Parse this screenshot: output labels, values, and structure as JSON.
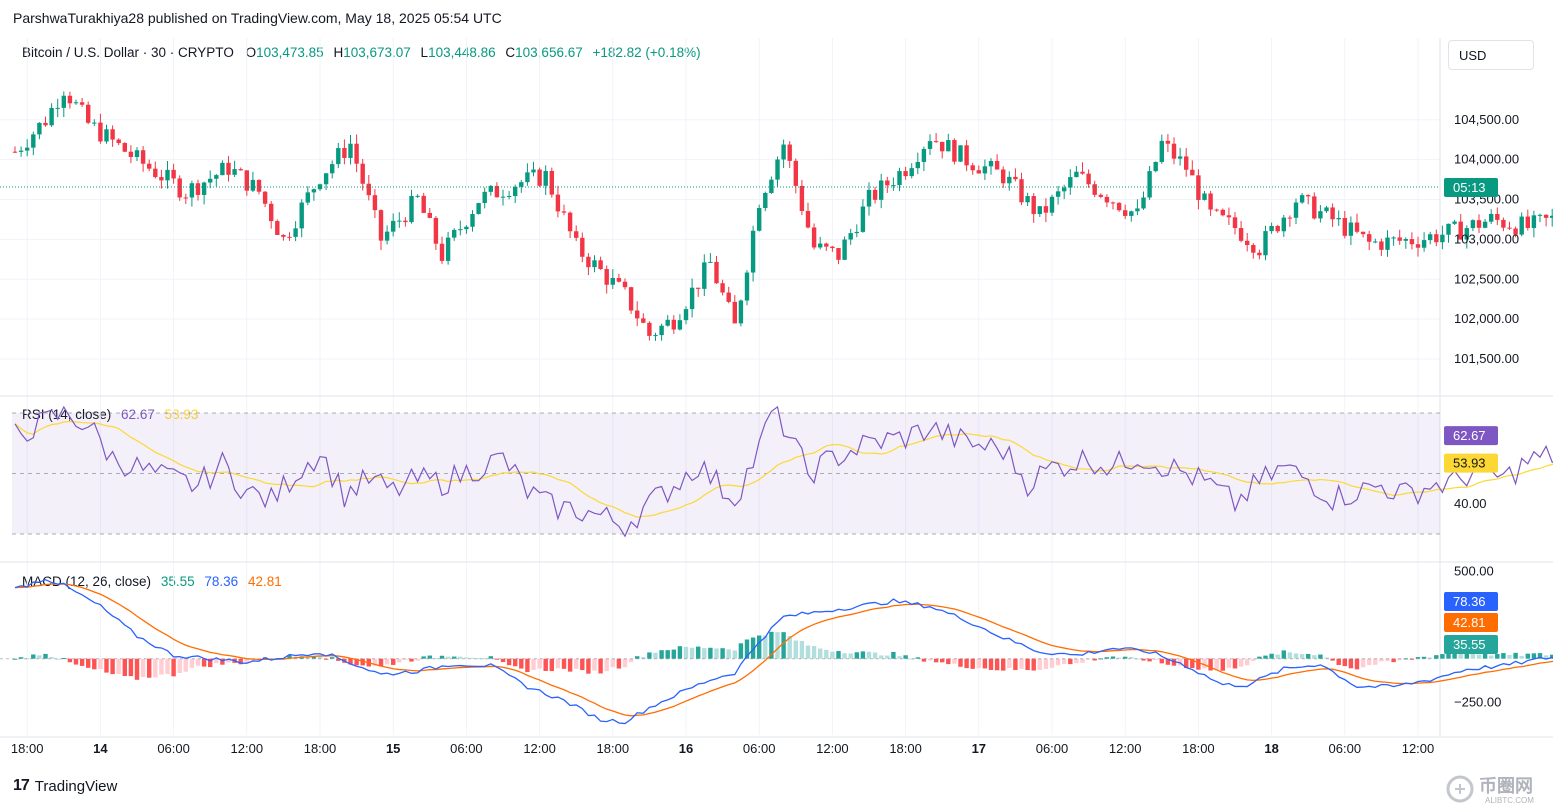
{
  "publish_line": "ParshwaTurakhiya28 published on TradingView.com, May 18, 2025 05:54 UTC",
  "legend": {
    "symbol": "Bitcoin / U.S. Dollar · 30 · CRYPTO",
    "o_label": "O",
    "open": "103,473.85",
    "h_label": "H",
    "high": "103,673.07",
    "l_label": "L",
    "low": "103,448.86",
    "c_label": "C",
    "close": "103,656.67",
    "change": "+182.82 (+0.18%)"
  },
  "currency_button": "USD",
  "countdown": "05:13",
  "rsi": {
    "label": "RSI (14, close)",
    "value": "62.67",
    "ma_value": "53.93",
    "axis_label": "40.00"
  },
  "macd": {
    "label": "MACD (12, 26, close)",
    "histogram_value": "35.55",
    "macd_value": "78.36",
    "signal_value": "42.81",
    "axis_top": "500.00",
    "axis_bottom": "−250.00"
  },
  "footer": {
    "logo_glyph": "17",
    "brand": "TradingView"
  },
  "watermark": {
    "text": "币圈网",
    "url": "ALIBTC.COM"
  },
  "colors": {
    "up": "#089981",
    "down": "#f23645",
    "rsi": "#7e57c2",
    "rsi_ma": "#fdd835",
    "macd": "#2962ff",
    "signal": "#ff6d00",
    "hist_up": "#26a69a",
    "hist_up_light": "#b2dfdb",
    "hist_down": "#ff5252",
    "hist_down_light": "#ffcdd2"
  },
  "chart_data": {
    "type": "candlestick",
    "price_axis": {
      "ticks": [
        104500,
        104000,
        103500,
        103000,
        102500,
        102000,
        101500
      ],
      "tick_labels": [
        "104,500.00",
        "104,000.00",
        "103,500.00",
        "103,000.00",
        "102,500.00",
        "102,000.00",
        "101,500.00"
      ],
      "range": [
        101300,
        105400
      ]
    },
    "time_axis": {
      "labels": [
        "18:00",
        "14",
        "06:00",
        "12:00",
        "18:00",
        "15",
        "06:00",
        "12:00",
        "18:00",
        "16",
        "06:00",
        "12:00",
        "18:00",
        "17",
        "06:00",
        "12:00",
        "18:00",
        "18",
        "06:00",
        "12:00"
      ],
      "bold": [
        false,
        true,
        false,
        false,
        false,
        true,
        false,
        false,
        false,
        true,
        false,
        false,
        false,
        true,
        false,
        false,
        false,
        true,
        false,
        false
      ],
      "bars_per_label": 12,
      "first_label_bar": 2
    },
    "last_price": 103656.67,
    "path_anchors": [
      [
        0,
        104100
      ],
      [
        5,
        104500
      ],
      [
        8,
        104900
      ],
      [
        12,
        104450
      ],
      [
        20,
        104000
      ],
      [
        28,
        103600
      ],
      [
        35,
        103900
      ],
      [
        40,
        103600
      ],
      [
        44,
        103000
      ],
      [
        50,
        103800
      ],
      [
        55,
        104200
      ],
      [
        60,
        103000
      ],
      [
        66,
        103500
      ],
      [
        70,
        102800
      ],
      [
        76,
        103500
      ],
      [
        82,
        103700
      ],
      [
        87,
        103800
      ],
      [
        92,
        102900
      ],
      [
        100,
        102300
      ],
      [
        104,
        101800
      ],
      [
        108,
        102000
      ],
      [
        114,
        102700
      ],
      [
        118,
        101900
      ],
      [
        122,
        103500
      ],
      [
        126,
        104200
      ],
      [
        131,
        102900
      ],
      [
        135,
        102800
      ],
      [
        140,
        103500
      ],
      [
        146,
        103900
      ],
      [
        150,
        104300
      ],
      [
        156,
        104000
      ],
      [
        162,
        103800
      ],
      [
        168,
        103300
      ],
      [
        174,
        103800
      ],
      [
        178,
        103600
      ],
      [
        184,
        103300
      ],
      [
        188,
        104200
      ],
      [
        192,
        103900
      ],
      [
        196,
        103300
      ],
      [
        200,
        103150
      ],
      [
        204,
        102900
      ],
      [
        210,
        103500
      ],
      [
        216,
        103250
      ],
      [
        222,
        102950
      ],
      [
        230,
        103000
      ],
      [
        236,
        103100
      ],
      [
        242,
        103250
      ],
      [
        248,
        103150
      ],
      [
        254,
        103300
      ],
      [
        260,
        103450
      ],
      [
        264,
        103650
      ]
    ],
    "rsi_series": {
      "name": "RSI",
      "last": 62.67,
      "ma_last": 53.93,
      "bands": [
        70,
        30
      ],
      "middle": 50
    },
    "rsi_anchors": [
      [
        0,
        63
      ],
      [
        5,
        67
      ],
      [
        8,
        70
      ],
      [
        12,
        66
      ],
      [
        16,
        55
      ],
      [
        20,
        52
      ],
      [
        24,
        49
      ],
      [
        30,
        46
      ],
      [
        34,
        53
      ],
      [
        38,
        44
      ],
      [
        42,
        41
      ],
      [
        46,
        50
      ],
      [
        50,
        57
      ],
      [
        54,
        43
      ],
      [
        58,
        48
      ],
      [
        62,
        44
      ],
      [
        66,
        48
      ],
      [
        70,
        47
      ],
      [
        76,
        52
      ],
      [
        80,
        55
      ],
      [
        84,
        44
      ],
      [
        88,
        39
      ],
      [
        92,
        38
      ],
      [
        96,
        36
      ],
      [
        100,
        33
      ],
      [
        104,
        40
      ],
      [
        108,
        46
      ],
      [
        112,
        53
      ],
      [
        116,
        45
      ],
      [
        118,
        42
      ],
      [
        122,
        58
      ],
      [
        124,
        70
      ],
      [
        126,
        66
      ],
      [
        130,
        50
      ],
      [
        134,
        55
      ],
      [
        140,
        60
      ],
      [
        146,
        62
      ],
      [
        150,
        65
      ],
      [
        156,
        60
      ],
      [
        162,
        58
      ],
      [
        166,
        47
      ],
      [
        170,
        52
      ],
      [
        176,
        55
      ],
      [
        180,
        52
      ],
      [
        184,
        56
      ],
      [
        188,
        53
      ],
      [
        192,
        50
      ],
      [
        196,
        46
      ],
      [
        200,
        40
      ],
      [
        204,
        47
      ],
      [
        208,
        52
      ],
      [
        212,
        48
      ],
      [
        216,
        42
      ],
      [
        220,
        44
      ],
      [
        224,
        46
      ],
      [
        228,
        43
      ],
      [
        232,
        46
      ],
      [
        236,
        47
      ],
      [
        240,
        52
      ],
      [
        244,
        48
      ],
      [
        248,
        54
      ],
      [
        252,
        56
      ],
      [
        256,
        51
      ],
      [
        260,
        55
      ],
      [
        264,
        63
      ]
    ],
    "macd_axis": {
      "ticks": [
        500,
        -250
      ],
      "range": [
        -380,
        520
      ]
    },
    "macd_anchors": [
      [
        0,
        400
      ],
      [
        5,
        460
      ],
      [
        8,
        420
      ],
      [
        14,
        300
      ],
      [
        20,
        130
      ],
      [
        26,
        20
      ],
      [
        32,
        0
      ],
      [
        38,
        -20
      ],
      [
        44,
        10
      ],
      [
        50,
        40
      ],
      [
        54,
        -10
      ],
      [
        60,
        -90
      ],
      [
        66,
        -70
      ],
      [
        72,
        -30
      ],
      [
        78,
        -40
      ],
      [
        84,
        -160
      ],
      [
        90,
        -240
      ],
      [
        96,
        -350
      ],
      [
        100,
        -360
      ],
      [
        104,
        -280
      ],
      [
        110,
        -180
      ],
      [
        114,
        -120
      ],
      [
        118,
        -80
      ],
      [
        122,
        100
      ],
      [
        126,
        240
      ],
      [
        130,
        260
      ],
      [
        136,
        290
      ],
      [
        144,
        330
      ],
      [
        150,
        300
      ],
      [
        156,
        220
      ],
      [
        162,
        120
      ],
      [
        168,
        40
      ],
      [
        174,
        20
      ],
      [
        180,
        60
      ],
      [
        186,
        40
      ],
      [
        192,
        -40
      ],
      [
        198,
        -150
      ],
      [
        202,
        -150
      ],
      [
        208,
        -60
      ],
      [
        214,
        -30
      ],
      [
        220,
        -160
      ],
      [
        226,
        -160
      ],
      [
        232,
        -120
      ],
      [
        238,
        -60
      ],
      [
        244,
        -40
      ],
      [
        252,
        10
      ],
      [
        258,
        20
      ],
      [
        264,
        78
      ]
    ]
  }
}
